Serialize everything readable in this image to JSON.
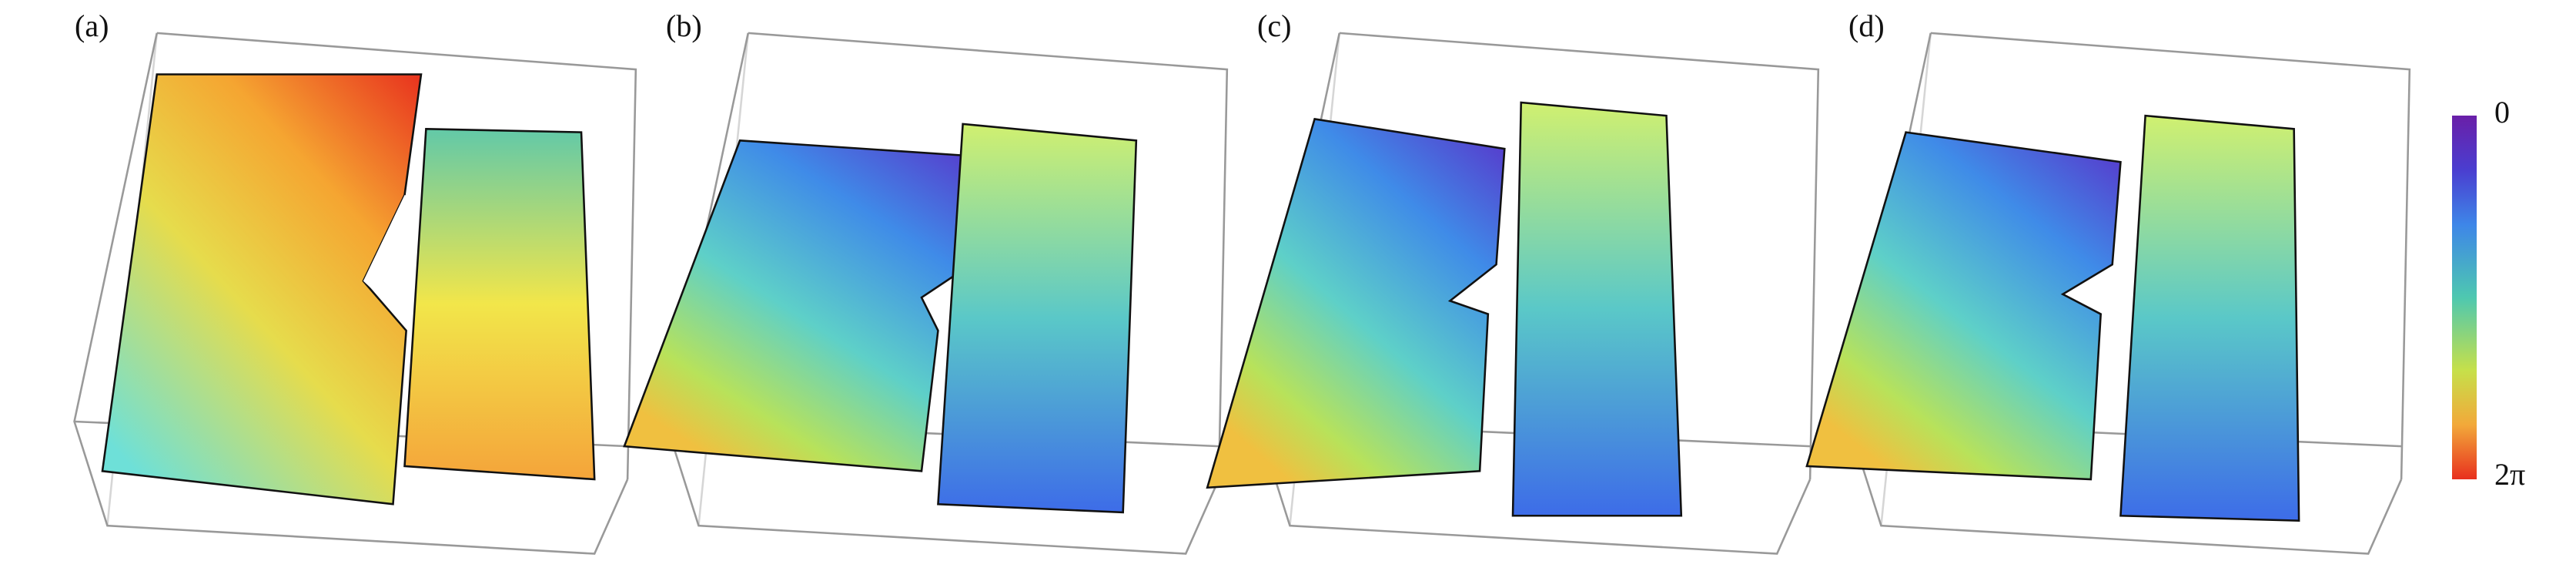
{
  "panels": [
    {
      "label": "(a)"
    },
    {
      "label": "(b)"
    },
    {
      "label": "(c)"
    },
    {
      "label": "(d)"
    }
  ],
  "colorbar": {
    "top_label": "0",
    "bottom_label": "2π"
  }
}
